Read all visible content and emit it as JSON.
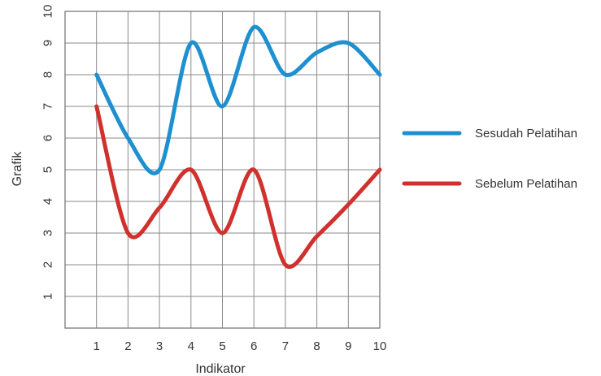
{
  "chart_data": {
    "type": "line",
    "title": "",
    "xlabel": "Indikator",
    "ylabel": "Grafik",
    "x": [
      1,
      2,
      3,
      4,
      5,
      6,
      7,
      8,
      9,
      10
    ],
    "xlim": [
      0,
      10
    ],
    "ylim": [
      0,
      10
    ],
    "yticks": [
      1,
      2,
      3,
      4,
      5,
      6,
      7,
      8,
      9,
      10
    ],
    "grid": true,
    "legend_position": "right",
    "series": [
      {
        "name": "Sesudah Pelatihan",
        "color": "#1e90d0",
        "values": [
          8,
          6,
          5,
          9,
          7,
          9.5,
          8,
          8.7,
          9,
          8
        ]
      },
      {
        "name": "Sebelum Pelatihan",
        "color": "#d0312d",
        "values": [
          7,
          3,
          3.8,
          5,
          3,
          5,
          2,
          2.9,
          3.9,
          5
        ]
      }
    ]
  }
}
